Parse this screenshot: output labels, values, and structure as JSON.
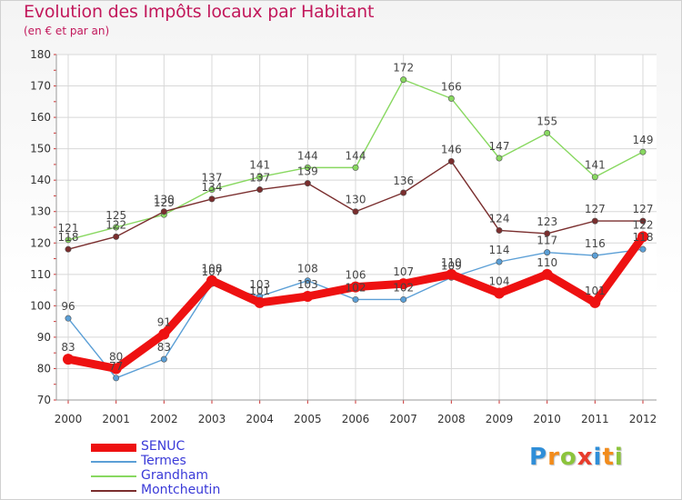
{
  "chart_data": {
    "type": "line",
    "title": "Evolution des Impôts locaux par Habitant",
    "subtitle": "(en € et par an)",
    "xlabel": "",
    "ylabel": "",
    "x": [
      "2000",
      "2001",
      "2002",
      "2003",
      "2004",
      "2005",
      "2006",
      "2007",
      "2008",
      "2009",
      "2010",
      "2011",
      "2012"
    ],
    "ylim": [
      70,
      180
    ],
    "yticks": [
      70,
      80,
      90,
      100,
      110,
      120,
      130,
      140,
      150,
      160,
      170,
      180
    ],
    "series": [
      {
        "name": "SENUC",
        "color": "#ee1111",
        "values": [
          83,
          80,
          91,
          108,
          101,
          103,
          106,
          107,
          110,
          104,
          110,
          101,
          122
        ],
        "labels": [
          "83",
          "80",
          "91",
          "108",
          "101",
          "103",
          "106",
          "107",
          "110",
          "104",
          "110",
          "101",
          "122"
        ]
      },
      {
        "name": "Termes",
        "color": "#5b9fd6",
        "values": [
          96,
          77,
          83,
          107,
          103,
          108,
          102,
          102,
          109,
          114,
          117,
          116,
          118
        ],
        "labels": [
          "96",
          "77",
          "83",
          "107",
          "103",
          "108",
          "102",
          "102",
          "109",
          "114",
          "117",
          "116",
          "118"
        ]
      },
      {
        "name": "Grandham",
        "color": "#88d860",
        "values": [
          121,
          125,
          129,
          137,
          141,
          144,
          144,
          172,
          166,
          147,
          155,
          141,
          149
        ],
        "labels": [
          "121",
          "125",
          "129",
          "137",
          "141",
          "144",
          "144",
          "172",
          "166",
          "147",
          "155",
          "141",
          "149"
        ]
      },
      {
        "name": "Montcheutin",
        "color": "#7a2e2e",
        "values": [
          118,
          122,
          130,
          134,
          137,
          139,
          130,
          136,
          146,
          124,
          123,
          127,
          127
        ],
        "labels": [
          "118",
          "122",
          "130",
          "134",
          "137",
          "139",
          "130",
          "136",
          "146",
          "124",
          "123",
          "127",
          "127"
        ]
      }
    ],
    "legend_position": "bottom-left"
  },
  "brand": {
    "letters": [
      "P",
      "r",
      "o",
      "x",
      "i",
      "t",
      "i"
    ],
    "colors": [
      "#2f8ed8",
      "#f28c1c",
      "#8cc43c",
      "#e83c2c",
      "#2f8ed8",
      "#f28c1c",
      "#8cc43c"
    ]
  }
}
